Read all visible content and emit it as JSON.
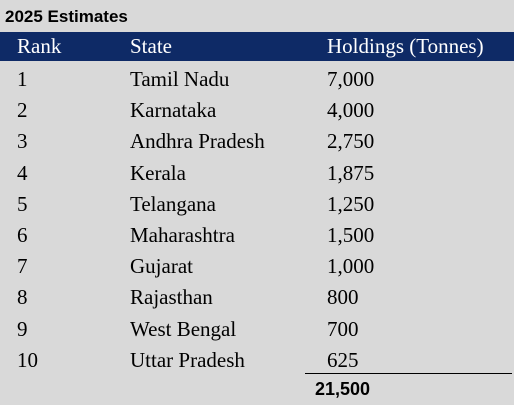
{
  "title": "2025 Estimates",
  "columns": {
    "rank": "Rank",
    "state": "State",
    "holdings": "Holdings (Tonnes)"
  },
  "rows": [
    {
      "rank": "1",
      "state": "Tamil Nadu",
      "holdings": "7,000"
    },
    {
      "rank": "2",
      "state": "Karnataka",
      "holdings": "4,000"
    },
    {
      "rank": "3",
      "state": "Andhra Pradesh",
      "holdings": "2,750"
    },
    {
      "rank": "4",
      "state": "Kerala",
      "holdings": "1,875"
    },
    {
      "rank": "5",
      "state": "Telangana",
      "holdings": "1,250"
    },
    {
      "rank": "6",
      "state": "Maharashtra",
      "holdings": "1,500"
    },
    {
      "rank": "7",
      "state": "Gujarat",
      "holdings": "1,000"
    },
    {
      "rank": "8",
      "state": "Rajasthan",
      "holdings": "800"
    },
    {
      "rank": "9",
      "state": "West Bengal",
      "holdings": "700"
    },
    {
      "rank": "10",
      "state": "Uttar Pradesh",
      "holdings": "625"
    }
  ],
  "total": "21,500",
  "colors": {
    "header_background": "#0e2a66",
    "header_text": "#ffffff",
    "page_background": "#d9d9d9"
  }
}
